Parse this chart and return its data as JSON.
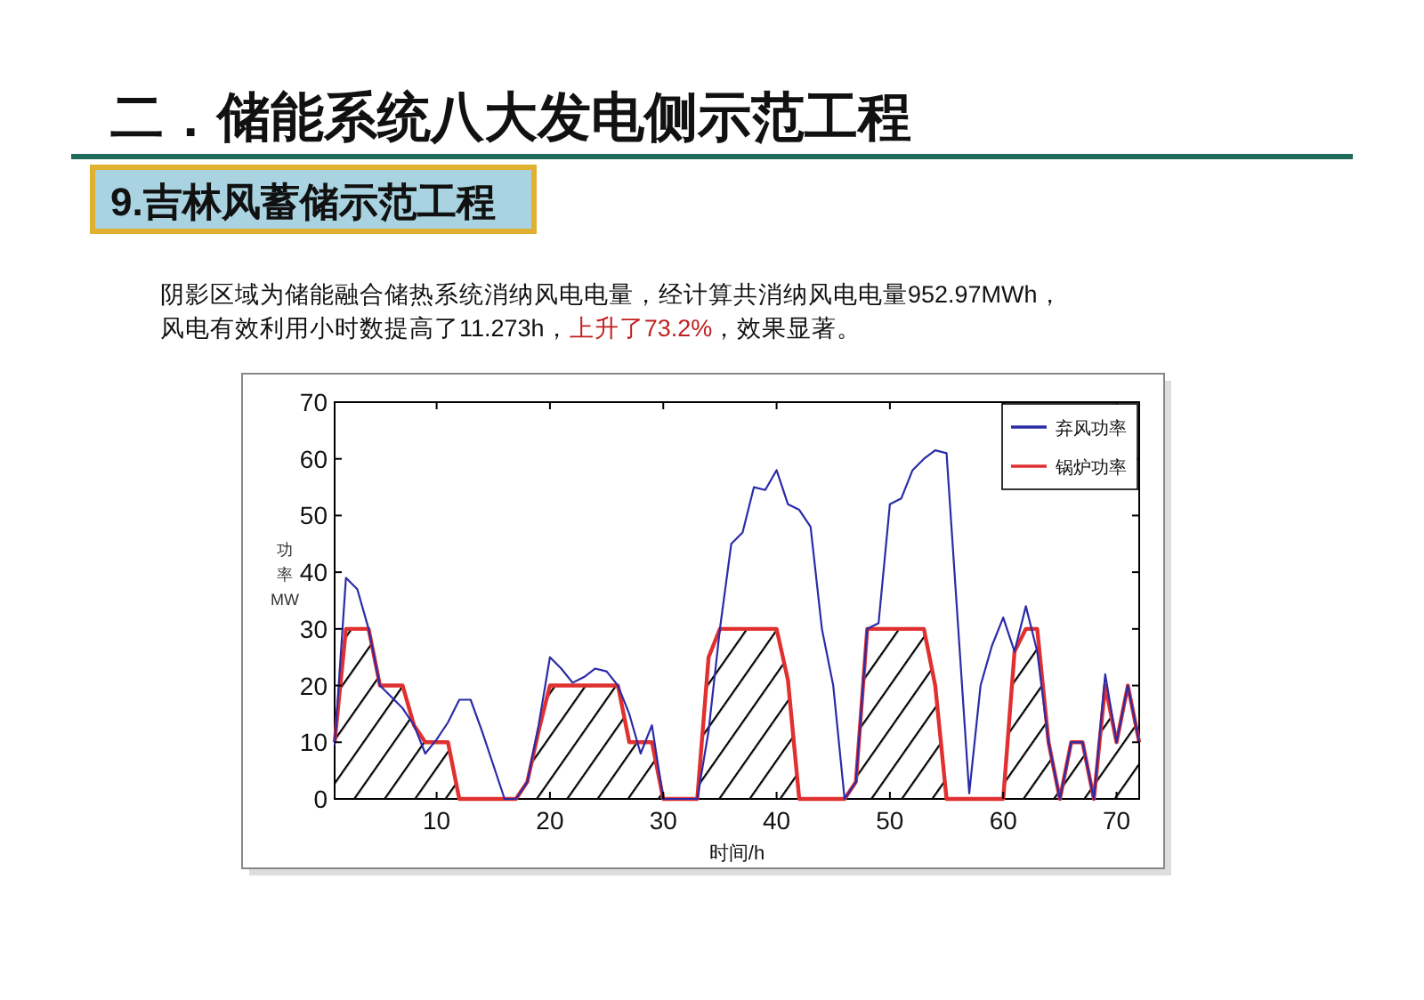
{
  "chart_data": {
    "type": "line",
    "title": "二．储能系统八大发电侧示范工程",
    "subtitle": "9.吉林风蓄储示范工程",
    "annotations": [
      "阴影区域为储能融合储热系统消纳风电电量，经计算共消纳风电电量952.97MWh，",
      "风电有效利用小时数提高了11.273h，",
      "上升了73.2%",
      "，效果显著。"
    ],
    "xlabel": "时间/h",
    "ylabel": "功率MW",
    "x": [
      1,
      2,
      3,
      4,
      5,
      6,
      7,
      8,
      9,
      10,
      11,
      12,
      13,
      14,
      15,
      16,
      17,
      18,
      19,
      20,
      21,
      22,
      23,
      24,
      25,
      26,
      27,
      28,
      29,
      30,
      31,
      32,
      33,
      34,
      35,
      36,
      37,
      38,
      39,
      40,
      41,
      42,
      43,
      44,
      45,
      46,
      47,
      48,
      49,
      50,
      51,
      52,
      53,
      54,
      55,
      56,
      57,
      58,
      59,
      60,
      61,
      62,
      63,
      64,
      65,
      66,
      67,
      68,
      69,
      70,
      71,
      72
    ],
    "series": [
      {
        "name": "弃风功率",
        "color": "#2b2ba8",
        "values": [
          9.5,
          39,
          37,
          30,
          20,
          18,
          16,
          13,
          8,
          10.5,
          13.5,
          17.5,
          17.5,
          12,
          6,
          0,
          0,
          3,
          13,
          25,
          23,
          20.5,
          21.5,
          23,
          22.5,
          20,
          15,
          8,
          13,
          0,
          0,
          0,
          0,
          12,
          30,
          45,
          47,
          55,
          54.5,
          58,
          52,
          51,
          48,
          30,
          20,
          0,
          3,
          30,
          31,
          52,
          53,
          58,
          60,
          61.5,
          61,
          31,
          1,
          20,
          27,
          32,
          26,
          34,
          26,
          10,
          0,
          10,
          10,
          0,
          22,
          10,
          20,
          10
        ]
      },
      {
        "name": "锅炉功率",
        "color": "#e03030",
        "type": "area",
        "values": [
          10,
          30,
          30,
          30,
          20,
          20,
          20,
          13,
          10,
          10,
          10,
          0,
          0,
          0,
          0,
          0,
          0,
          3,
          12,
          20,
          20,
          20,
          20,
          20,
          20,
          20,
          10,
          10,
          10,
          0,
          0,
          0,
          0,
          25,
          30,
          30,
          30,
          30,
          30,
          30,
          21,
          0,
          0,
          0,
          0,
          0,
          3,
          30,
          30,
          30,
          30,
          30,
          30,
          20,
          0,
          0,
          0,
          0,
          0,
          0,
          26,
          30,
          30,
          10,
          0,
          10,
          10,
          0,
          20,
          10,
          20,
          10
        ]
      }
    ],
    "xlim": [
      1,
      72
    ],
    "ylim": [
      0,
      70
    ],
    "xticks": [
      10,
      20,
      30,
      40,
      50,
      60,
      70
    ],
    "yticks": [
      0,
      10,
      20,
      30,
      40,
      50,
      60,
      70
    ],
    "grid": false,
    "legend": "top right",
    "marker": "none",
    "line_style": "solid"
  }
}
